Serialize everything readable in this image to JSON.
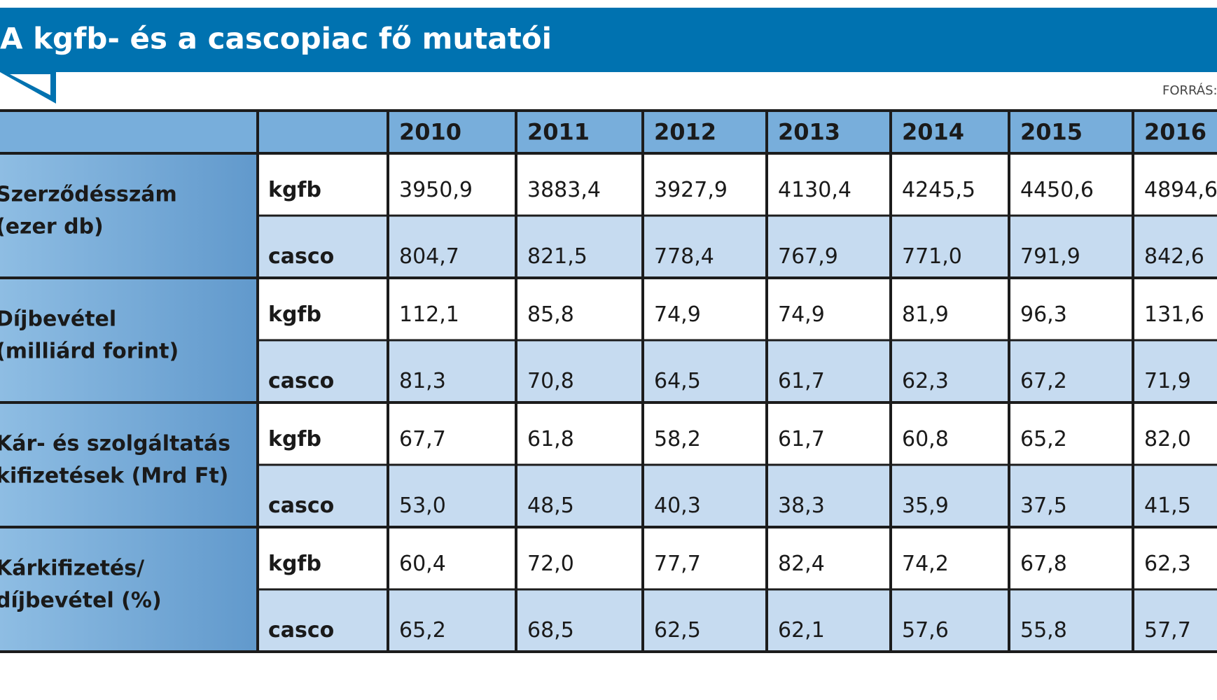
{
  "header": {
    "title": "A kgfb- és a cascopiac fő mutatói",
    "source": "FORRÁS:"
  },
  "table": {
    "years": [
      "2010",
      "2011",
      "2012",
      "2013",
      "2014",
      "2015",
      "2016"
    ],
    "groups": [
      {
        "label": [
          "Szerződésszám",
          "(ezer db)"
        ],
        "rows": [
          {
            "name": "kgfb",
            "values": [
              "3950,9",
              "3883,4",
              "3927,9",
              "4130,4",
              "4245,5",
              "4450,6",
              "4894,6"
            ]
          },
          {
            "name": "casco",
            "values": [
              "804,7",
              "821,5",
              "778,4",
              "767,9",
              "771,0",
              "791,9",
              "842,6"
            ]
          }
        ]
      },
      {
        "label": [
          "Díjbevétel",
          "(milliárd forint)"
        ],
        "rows": [
          {
            "name": "kgfb",
            "values": [
              "112,1",
              "85,8",
              "74,9",
              "74,9",
              "81,9",
              "96,3",
              "131,6"
            ]
          },
          {
            "name": "casco",
            "values": [
              "81,3",
              "70,8",
              "64,5",
              "61,7",
              "62,3",
              "67,2",
              "71,9"
            ]
          }
        ]
      },
      {
        "label": [
          "Kár- és szolgáltatás",
          "kifizetések (Mrd Ft)"
        ],
        "rows": [
          {
            "name": "kgfb",
            "values": [
              "67,7",
              "61,8",
              "58,2",
              "61,7",
              "60,8",
              "65,2",
              "82,0"
            ]
          },
          {
            "name": "casco",
            "values": [
              "53,0",
              "48,5",
              "40,3",
              "38,3",
              "35,9",
              "37,5",
              "41,5"
            ]
          }
        ]
      },
      {
        "label": [
          "Kárkifizetés/",
          "díjbevétel (%)"
        ],
        "rows": [
          {
            "name": "kgfb",
            "values": [
              "60,4",
              "72,0",
              "77,7",
              "82,4",
              "74,2",
              "67,8",
              "62,3"
            ]
          },
          {
            "name": "casco",
            "values": [
              "65,2",
              "68,5",
              "62,5",
              "62,1",
              "57,6",
              "55,8",
              "57,7"
            ]
          }
        ]
      }
    ]
  }
}
